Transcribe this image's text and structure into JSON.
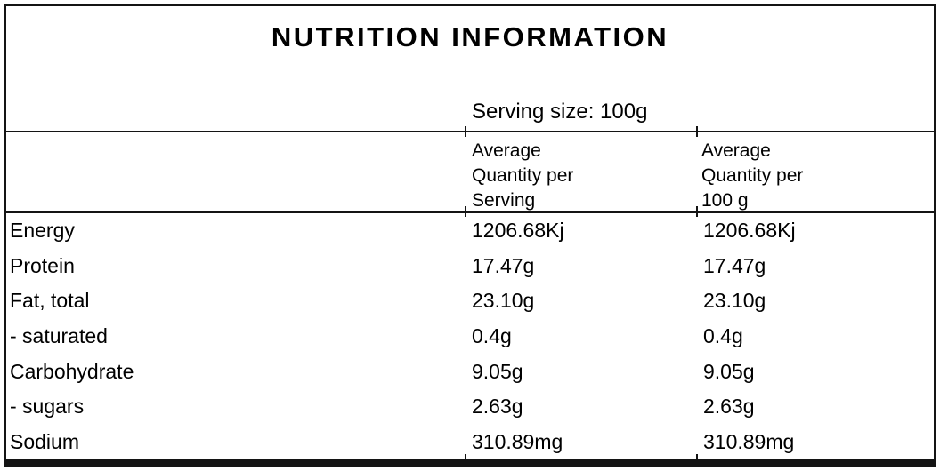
{
  "label": {
    "title": "NUTRITION INFORMATION",
    "serving_size_line": "Serving size: 100g",
    "columns": {
      "per_serving": "Average\nQuantity per\nServing",
      "per_100g": "Average\nQuantity per\n100 g"
    },
    "rows": [
      {
        "name": "Energy",
        "per_serving": "1206.68Kj",
        "per_100g": "1206.68Kj"
      },
      {
        "name": "Protein",
        "per_serving": "17.47g",
        "per_100g": "17.47g"
      },
      {
        "name": "Fat, total",
        "per_serving": "23.10g",
        "per_100g": "23.10g"
      },
      {
        "name": "- saturated",
        "per_serving": "0.4g",
        "per_100g": "0.4g"
      },
      {
        "name": "Carbohydrate",
        "per_serving": "9.05g",
        "per_100g": "9.05g"
      },
      {
        "name": "- sugars",
        "per_serving": "2.63g",
        "per_100g": "2.63g"
      },
      {
        "name": "Sodium",
        "per_serving": "310.89mg",
        "per_100g": "310.89mg"
      }
    ],
    "colors": {
      "background": "#ffffff",
      "border": "#141414",
      "text": "#000000"
    }
  }
}
